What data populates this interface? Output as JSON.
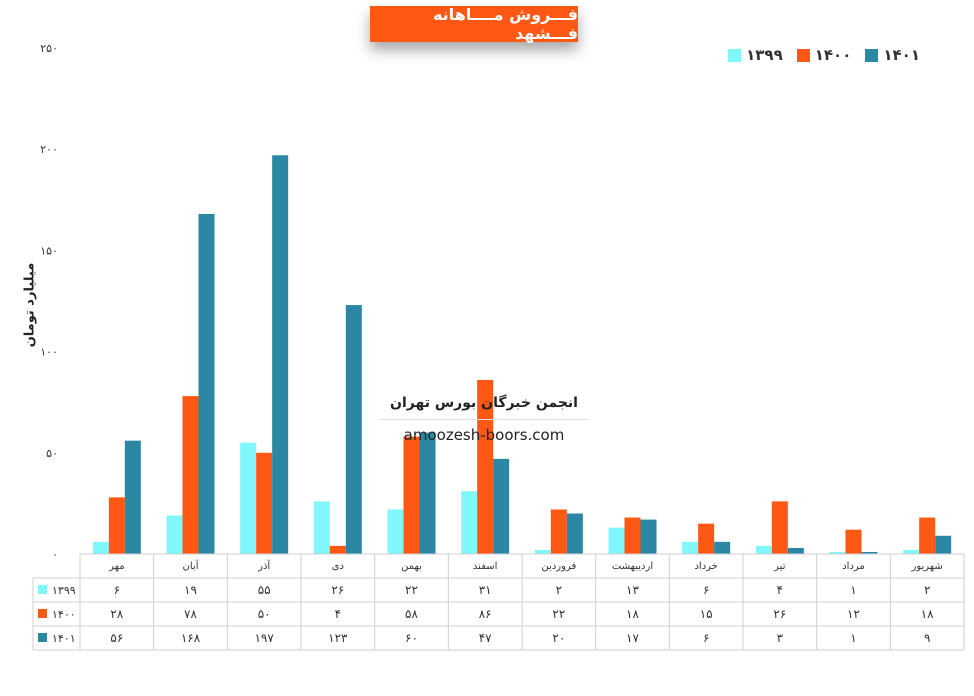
{
  "chart_data": {
    "type": "bar",
    "title": "فـــروش مــــاهانه فـــشهد",
    "ylabel": "میلیارد تومان",
    "ylim": [
      0,
      250
    ],
    "yticks": [
      "۰",
      "۵۰",
      "۱۰۰",
      "۱۵۰",
      "۲۰۰",
      "۲۵۰"
    ],
    "ytick_values": [
      0,
      50,
      100,
      150,
      200,
      250
    ],
    "categories": [
      "مهر",
      "آبان",
      "آذر",
      "دی",
      "بهمن",
      "اسفند",
      "فروردین",
      "اردیبهشت",
      "خرداد",
      "تیر",
      "مرداد",
      "شهریور"
    ],
    "series": [
      {
        "name": "۱۳۹۹",
        "color": "#7ff7fb",
        "values": [
          6,
          19,
          55,
          26,
          22,
          31,
          2,
          13,
          6,
          4,
          1,
          2
        ],
        "labels": [
          "۶",
          "۱۹",
          "۵۵",
          "۲۶",
          "۲۲",
          "۳۱",
          "۲",
          "۱۳",
          "۶",
          "۴",
          "۱",
          "۲"
        ]
      },
      {
        "name": "۱۴۰۰",
        "color": "#ff5714",
        "values": [
          28,
          78,
          50,
          4,
          58,
          86,
          22,
          18,
          15,
          26,
          12,
          18
        ],
        "labels": [
          "۲۸",
          "۷۸",
          "۵۰",
          "۴",
          "۵۸",
          "۸۶",
          "۲۲",
          "۱۸",
          "۱۵",
          "۲۶",
          "۱۲",
          "۱۸"
        ]
      },
      {
        "name": "۱۴۰۱",
        "color": "#2b87a4",
        "values": [
          56,
          168,
          197,
          123,
          60,
          47,
          20,
          17,
          6,
          3,
          1,
          9
        ],
        "labels": [
          "۵۶",
          "۱۶۸",
          "۱۹۷",
          "۱۲۳",
          "۶۰",
          "۴۷",
          "۲۰",
          "۱۷",
          "۶",
          "۳",
          "۱",
          "۹"
        ]
      }
    ],
    "legend_position": "top-right",
    "grid": false,
    "data_table": true
  },
  "colors": {
    "title_bg": "#ff5714",
    "title_text": "#ffffff"
  },
  "watermark": {
    "line1": "انجمن خبرگان بورس تهران",
    "line2": "amoozesh-boors.com"
  }
}
